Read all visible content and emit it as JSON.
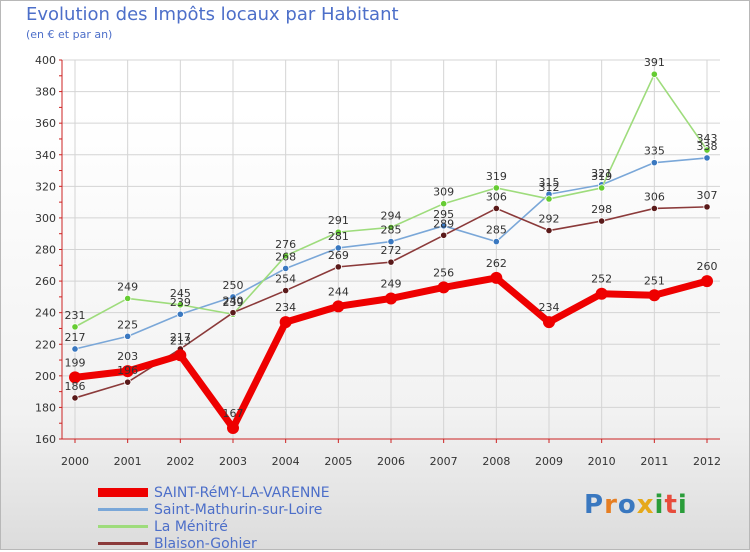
{
  "title": "Evolution des Impôts locaux par Habitant",
  "subtitle": "(en € et par an)",
  "logo": {
    "text": "Proxiti"
  },
  "chart_data": {
    "type": "line",
    "title": "Evolution des Impôts locaux par Habitant",
    "subtitle": "(en € et par an)",
    "xlabel": "",
    "ylabel": "",
    "x": [
      2000,
      2001,
      2002,
      2003,
      2004,
      2005,
      2006,
      2007,
      2008,
      2009,
      2010,
      2011,
      2012
    ],
    "ylim": [
      160,
      400
    ],
    "yticks": [
      160,
      180,
      200,
      220,
      240,
      260,
      280,
      300,
      320,
      340,
      360,
      380,
      400
    ],
    "grid": true,
    "legend_position": "bottom-left",
    "series": [
      {
        "name": "SAINT-RéMY-LA-VARENNE",
        "color": "#ee0000",
        "marker": "#ee0000",
        "thick": true,
        "values": [
          199,
          203,
          213,
          167,
          234,
          244,
          249,
          256,
          262,
          234,
          252,
          251,
          260
        ]
      },
      {
        "name": "Saint-Mathurin-sur-Loire",
        "color": "#7aa7d8",
        "marker": "#3a78c0",
        "thick": false,
        "values": [
          217,
          225,
          239,
          250,
          268,
          281,
          285,
          295,
          285,
          315,
          321,
          335,
          338
        ]
      },
      {
        "name": "La Ménitré",
        "color": "#9edc7c",
        "marker": "#66cc33",
        "thick": false,
        "values": [
          231,
          249,
          245,
          239,
          276,
          291,
          294,
          309,
          319,
          312,
          319,
          391,
          343
        ]
      },
      {
        "name": "Blaison-Gohier",
        "color": "#8b3a3a",
        "marker": "#5a1a1a",
        "thick": false,
        "values": [
          186,
          196,
          217,
          240,
          254,
          269,
          272,
          289,
          306,
          292,
          298,
          306,
          307
        ]
      }
    ]
  }
}
